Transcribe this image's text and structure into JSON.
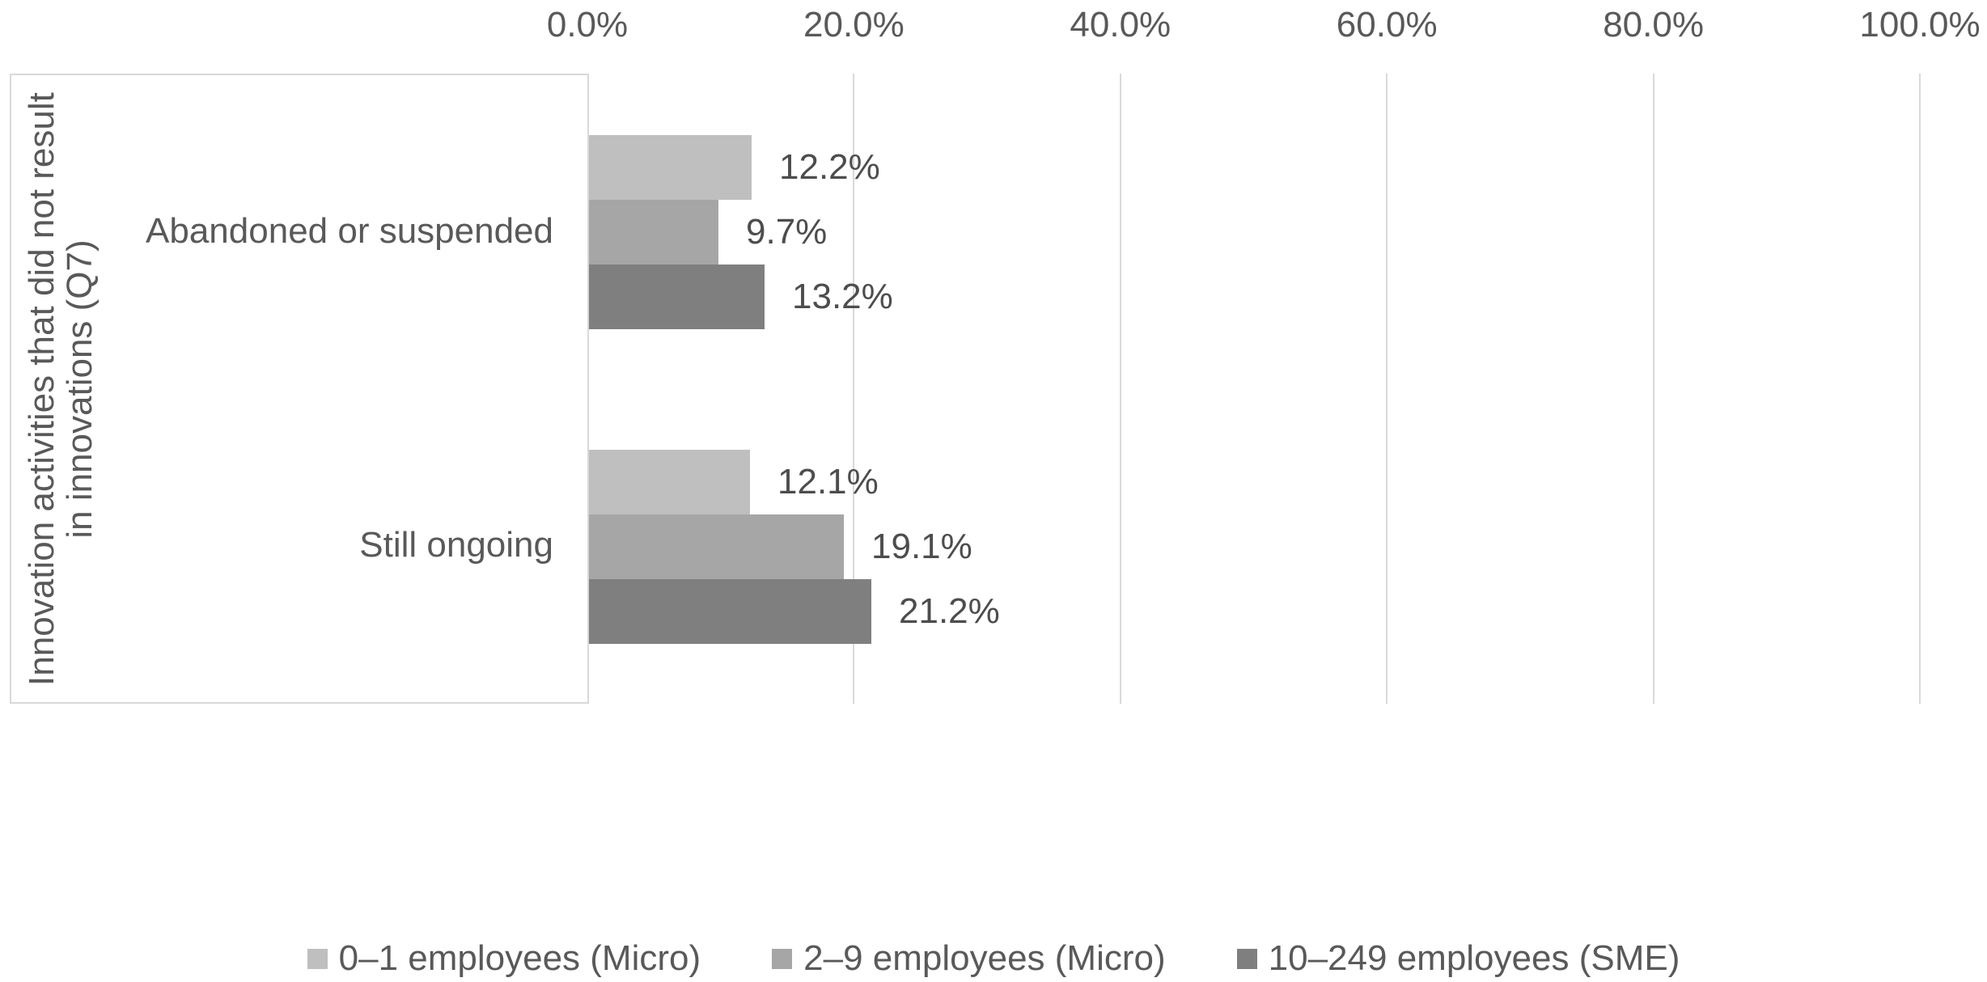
{
  "chart_data": {
    "type": "bar",
    "orientation": "horizontal",
    "title": "",
    "categories": [
      "Abandoned or suspended",
      "Still ongoing"
    ],
    "series": [
      {
        "name": "0–1 employees (Micro)",
        "color": "#BFBFBF",
        "values": [
          12.2,
          12.1
        ]
      },
      {
        "name": "2–9 employees (Micro)",
        "color": "#A6A6A6",
        "values": [
          9.7,
          19.1
        ]
      },
      {
        "name": "10–249 employees (SME)",
        "color": "#7F7F7F",
        "values": [
          13.2,
          21.2
        ]
      }
    ],
    "data_labels": [
      [
        "12.2%",
        "12.1%"
      ],
      [
        "9.7%",
        "19.1%"
      ],
      [
        "13.2%",
        "21.2%"
      ]
    ],
    "x_ticks": [
      "0.0%",
      "20.0%",
      "40.0%",
      "60.0%",
      "80.0%",
      "100.0%"
    ],
    "xlim": [
      0,
      100
    ],
    "ylabel_lines": [
      "Innovation activities that did not result",
      "in innovations (Q7)"
    ],
    "grid": "vertical-only",
    "legend_position": "bottom",
    "colors": {
      "gridline": "#D9D9D9",
      "axis_text": "#595959",
      "data_label_text": "#4D4D4D"
    }
  }
}
